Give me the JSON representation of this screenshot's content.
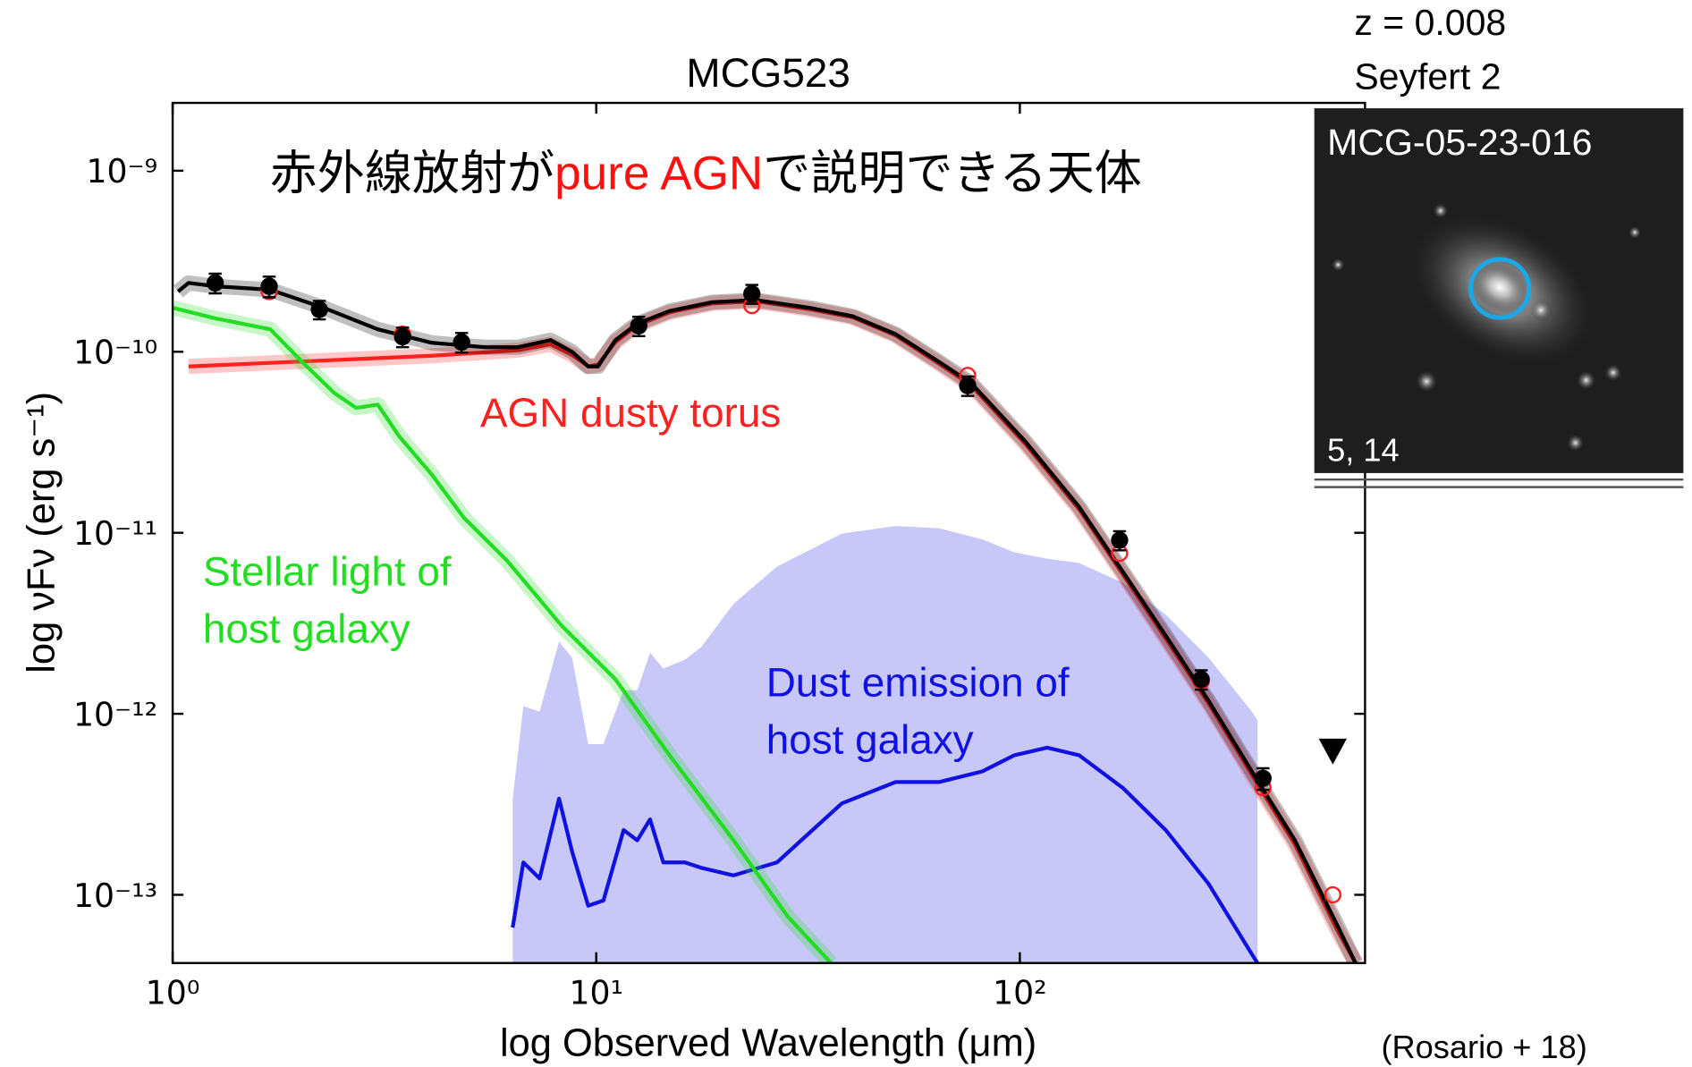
{
  "chart_data": {
    "type": "line",
    "title": "MCG523",
    "xlabel": "log Observed Wavelength (μm)",
    "ylabel": "log νFν (erg s⁻¹)",
    "xscale": "log",
    "yscale": "log",
    "xlim": [
      1,
      653
    ],
    "ylim": [
      4.2e-14,
      2.37e-09
    ],
    "xticks": [
      {
        "value": 1,
        "label": "10⁰"
      },
      {
        "value": 10,
        "label": "10¹"
      },
      {
        "value": 100,
        "label": "10²"
      }
    ],
    "yticks": [
      {
        "value": 1e-13,
        "label": "10⁻¹³"
      },
      {
        "value": 1e-12,
        "label": "10⁻¹²"
      },
      {
        "value": 1e-11,
        "label": "10⁻¹¹"
      },
      {
        "value": 1e-10,
        "label": "10⁻¹⁰"
      },
      {
        "value": 1e-09,
        "label": "10⁻⁹"
      }
    ],
    "series": [
      {
        "color": "#1010e0",
        "band_color": "#c8c8f8",
        "name": [
          "Dust emission of",
          "host galaxy"
        ],
        "x": [
          6.35,
          6.73,
          7.35,
          8.17,
          8.77,
          9.57,
          10.4,
          11.6,
          12.5,
          13.4,
          14.4,
          16.2,
          17.7,
          21.1,
          26.7,
          38.0,
          50.9,
          64.4,
          81.5,
          97,
          116,
          138,
          175,
          221,
          279,
          353,
          364
        ],
        "values": [
          6.6e-14,
          1.51e-13,
          1.23e-13,
          3.4e-13,
          1.73e-13,
          8.7e-14,
          9.3e-14,
          2.28e-13,
          2e-13,
          2.61e-13,
          1.51e-13,
          1.51e-13,
          1.41e-13,
          1.28e-13,
          1.51e-13,
          3.2e-13,
          4.2e-13,
          4.2e-13,
          4.8e-13,
          5.9e-13,
          6.5e-13,
          5.9e-13,
          3.9e-13,
          2.28e-13,
          1.15e-13,
          4.7e-14,
          4.2e-14
        ],
        "upper": [
          3.4e-13,
          1.1e-12,
          1.03e-12,
          2.5e-12,
          2.04e-12,
          6.8e-13,
          6.8e-13,
          1.35e-12,
          1.35e-12,
          2.18e-12,
          1.78e-12,
          1.99e-12,
          2.34e-12,
          4.05e-12,
          6.5e-12,
          9.9e-12,
          1.09e-11,
          1.06e-11,
          9.2e-12,
          7.8e-12,
          7.2e-12,
          6.8e-12,
          5.3e-12,
          3.53e-12,
          2.04e-12,
          1.03e-12,
          9.2e-13
        ]
      },
      {
        "color": "#ff2020",
        "name": [
          "AGN dusty torus"
        ],
        "x": [
          1.09,
          4.09,
          6.53,
          7.8,
          8.77,
          9.57,
          10.1,
          11.1,
          12.5,
          14.9,
          18.8,
          23.8,
          31.8,
          40.3,
          50.9,
          64.4,
          76.8,
          103,
          138,
          175,
          221,
          279,
          353,
          446,
          565,
          620
        ],
        "values": [
          8.3e-11,
          9.5e-11,
          1.02e-10,
          1.1e-10,
          9.6e-11,
          8.3e-11,
          8.5e-11,
          1.13e-10,
          1.4e-10,
          1.65e-10,
          1.85e-10,
          1.9e-10,
          1.72e-10,
          1.55e-10,
          1.23e-10,
          8.6e-11,
          6.5e-11,
          3.1e-11,
          1.35e-11,
          5.9e-12,
          2.6e-12,
          1.14e-12,
          4.6e-13,
          1.9e-13,
          6.2e-14,
          4.2e-14
        ]
      },
      {
        "color": "#22dd22",
        "name": [
          "Stellar light of",
          "host galaxy"
        ],
        "x": [
          1.0,
          1.26,
          1.7,
          2.02,
          2.41,
          2.71,
          3.05,
          3.43,
          4.09,
          4.87,
          6.16,
          8.27,
          11.1,
          14.9,
          21.1,
          28.3,
          35.8
        ],
        "values": [
          1.75e-10,
          1.53e-10,
          1.33e-10,
          8.8e-11,
          5.9e-11,
          4.9e-11,
          5.1e-11,
          3.4e-11,
          2.1e-11,
          1.21e-11,
          7e-12,
          3.08e-12,
          1.55e-12,
          5.9e-13,
          2e-13,
          7.6e-14,
          4.2e-14
        ]
      },
      {
        "color": "#000000",
        "x": [
          1.03,
          1.09,
          1.26,
          1.7,
          2.27,
          3.05,
          4.09,
          5.48,
          6.53,
          7.8,
          8.77,
          9.57,
          10.1,
          11.1,
          12.5,
          14.9,
          18.8,
          23.8,
          31.8,
          40.3,
          50.9,
          64.4,
          76.8,
          103,
          138,
          175,
          221,
          279,
          353,
          446,
          565,
          620
        ],
        "values": [
          2.15e-10,
          2.4e-10,
          2.3e-10,
          2.2e-10,
          1.75e-10,
          1.33e-10,
          1.12e-10,
          1.06e-10,
          1.06e-10,
          1.16e-10,
          1e-10,
          8.3e-11,
          8.3e-11,
          1.16e-10,
          1.43e-10,
          1.68e-10,
          1.88e-10,
          1.93e-10,
          1.75e-10,
          1.57e-10,
          1.25e-10,
          8.8e-11,
          6.7e-11,
          3.2e-11,
          1.39e-11,
          6.1e-12,
          2.7e-12,
          1.18e-12,
          4.8e-13,
          2e-13,
          6.6e-14,
          4.2e-14
        ]
      }
    ],
    "observed": {
      "color": "#000000",
      "x": [
        1.26,
        1.69,
        2.22,
        3.49,
        4.81,
        12.6,
        23.3,
        75.3,
        172,
        268,
        375
      ],
      "values": [
        2.4e-10,
        2.3e-10,
        1.71e-10,
        1.21e-10,
        1.13e-10,
        1.39e-10,
        2.09e-10,
        6.5e-11,
        9.1e-12,
        1.55e-12,
        4.4e-13
      ],
      "errors": [
        3e-11,
        3e-11,
        2e-11,
        1.5e-11,
        1.4e-11,
        1.7e-11,
        2.5e-11,
        8e-12,
        1.1e-12,
        1.9e-13,
        6e-14
      ]
    },
    "model_points": {
      "color": "#ff2020",
      "x": [
        1.69,
        3.49,
        23.3,
        75.3,
        172,
        268,
        375,
        548
      ],
      "values": [
        2.15e-10,
        1.25e-10,
        1.8e-10,
        7.4e-11,
        7.7e-12,
        1.51e-12,
        3.9e-13,
        1e-13
      ]
    },
    "upper_limits": {
      "color": "#000000",
      "x": [
        548
      ],
      "values": [
        6.1e-13
      ]
    }
  },
  "heading": {
    "parts": [
      "赤外線放射が",
      "pure AGN",
      "で説明できる天体"
    ],
    "highlight_color": "#ff1010"
  },
  "object_info": {
    "redshift": "z = 0.008",
    "class": "Seyfert 2"
  },
  "image": {
    "label": "MCG-05-23-016",
    "corner": "5, 14"
  },
  "citation": "(Rosario + 18)"
}
